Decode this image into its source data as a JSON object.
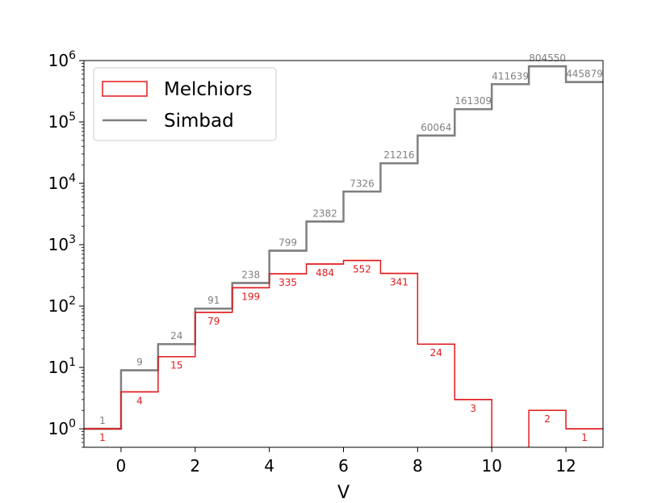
{
  "chart_data": {
    "type": "histogram",
    "title": "",
    "xlabel": "V",
    "ylabel": "",
    "xlim": [
      -1,
      13
    ],
    "ylim": [
      0.5,
      1000000
    ],
    "y_scale": "log",
    "grid": false,
    "legend_position": "top-left",
    "x_ticks": [
      0,
      2,
      4,
      6,
      8,
      10,
      12
    ],
    "y_ticks": [
      {
        "value": 1,
        "base": "10",
        "exp": "0"
      },
      {
        "value": 10,
        "base": "10",
        "exp": "1"
      },
      {
        "value": 100,
        "base": "10",
        "exp": "2"
      },
      {
        "value": 1000,
        "base": "10",
        "exp": "3"
      },
      {
        "value": 10000,
        "base": "10",
        "exp": "4"
      },
      {
        "value": 100000,
        "base": "10",
        "exp": "5"
      },
      {
        "value": 1000000,
        "base": "10",
        "exp": "6"
      }
    ],
    "bin_edges": [
      -1,
      0,
      1,
      2,
      3,
      4,
      5,
      6,
      7,
      8,
      9,
      10,
      11,
      12,
      13
    ],
    "series": [
      {
        "name": "Melchiors",
        "color": "#e31a1c",
        "values": [
          1,
          4,
          15,
          79,
          199,
          335,
          484,
          552,
          341,
          24,
          3,
          0,
          2,
          1
        ],
        "labels": [
          "1",
          "4",
          "15",
          "79",
          "199",
          "335",
          "484",
          "552",
          "341",
          "24",
          "3",
          "",
          "2",
          "1"
        ]
      },
      {
        "name": "Simbad",
        "color": "#808080",
        "values": [
          1,
          9,
          24,
          91,
          238,
          799,
          2382,
          7326,
          21216,
          60064,
          161309,
          411639,
          804550,
          445879
        ],
        "labels": [
          "1",
          "9",
          "24",
          "91",
          "238",
          "799",
          "2382",
          "7326",
          "21216",
          "60064",
          "161309",
          "411639",
          "804550",
          "445879"
        ]
      }
    ]
  }
}
